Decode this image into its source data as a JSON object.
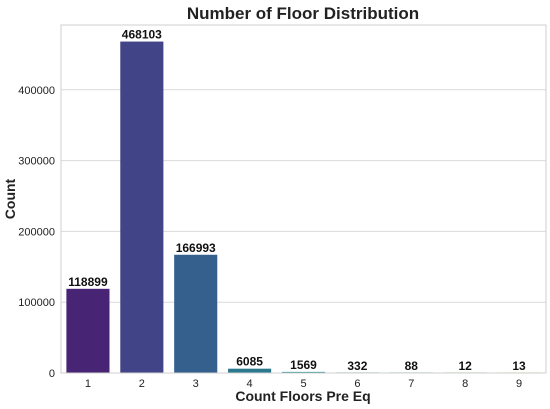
{
  "chart_data": {
    "type": "bar",
    "title": "Number of Floor Distribution",
    "xlabel": "Count Floors Pre Eq",
    "ylabel": "Count",
    "categories": [
      "1",
      "2",
      "3",
      "4",
      "5",
      "6",
      "7",
      "8",
      "9"
    ],
    "values": [
      118899,
      468103,
      166993,
      6085,
      1569,
      332,
      88,
      12,
      13
    ],
    "data_labels": [
      "118899",
      "468103",
      "166993",
      "6085",
      "1569",
      "332",
      "88",
      "12",
      "13"
    ],
    "colors": [
      "#482475",
      "#414487",
      "#355f8d",
      "#2a788e",
      "#21918c",
      "#22a884",
      "#44bf70",
      "#7ad151",
      "#bddf26"
    ],
    "ylim": [
      0,
      491508
    ],
    "yticks": [
      0,
      100000,
      200000,
      300000,
      400000
    ],
    "ytick_labels": [
      "0",
      "100000",
      "200000",
      "300000",
      "400000"
    ],
    "grid": true,
    "legend": "none"
  }
}
